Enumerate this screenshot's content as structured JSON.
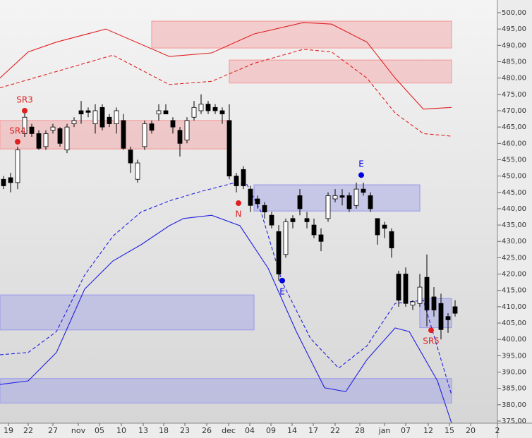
{
  "chart_data": {
    "type": "candlestick",
    "xlim": [
      0,
      70.5
    ],
    "ylim": [
      374.35,
      503.89
    ],
    "xticks": [
      {
        "value": 1.2,
        "label": "19"
      },
      {
        "value": 4.0,
        "label": "22"
      },
      {
        "value": 7.5,
        "label": "27"
      },
      {
        "value": 11.1,
        "label": "nov"
      },
      {
        "value": 14.1,
        "label": "05"
      },
      {
        "value": 17.2,
        "label": "10"
      },
      {
        "value": 20.3,
        "label": "13"
      },
      {
        "value": 23.2,
        "label": "18"
      },
      {
        "value": 26.2,
        "label": "23"
      },
      {
        "value": 29.3,
        "label": "26"
      },
      {
        "value": 32.4,
        "label": "dec"
      },
      {
        "value": 35.4,
        "label": "04"
      },
      {
        "value": 38.4,
        "label": "09"
      },
      {
        "value": 41.4,
        "label": "14"
      },
      {
        "value": 44.4,
        "label": "17"
      },
      {
        "value": 47.5,
        "label": "22"
      },
      {
        "value": 51.0,
        "label": "28"
      },
      {
        "value": 54.5,
        "label": "jan"
      },
      {
        "value": 57.5,
        "label": "07"
      },
      {
        "value": 60.7,
        "label": "12"
      },
      {
        "value": 63.7,
        "label": "15"
      },
      {
        "value": 66.7,
        "label": "20"
      },
      {
        "value": 70.5,
        "label": "2"
      }
    ],
    "yticks": [
      {
        "value": 500,
        "label": "500,00"
      },
      {
        "value": 495,
        "label": "495,00"
      },
      {
        "value": 490,
        "label": "490,00"
      },
      {
        "value": 485,
        "label": "485,00"
      },
      {
        "value": 480,
        "label": "480,00"
      },
      {
        "value": 475,
        "label": "475,00"
      },
      {
        "value": 470,
        "label": "470,00"
      },
      {
        "value": 465,
        "label": "465,00"
      },
      {
        "value": 460,
        "label": "460,00"
      },
      {
        "value": 455,
        "label": "455,00"
      },
      {
        "value": 450,
        "label": "450,00"
      },
      {
        "value": 445,
        "label": "445,00"
      },
      {
        "value": 440,
        "label": "440,00"
      },
      {
        "value": 435,
        "label": "435,00"
      },
      {
        "value": 430,
        "label": "430,00"
      },
      {
        "value": 425,
        "label": "425,00"
      },
      {
        "value": 420,
        "label": "420,00"
      },
      {
        "value": 415,
        "label": "415,00"
      },
      {
        "value": 410,
        "label": "410,00"
      },
      {
        "value": 405,
        "label": "405,00"
      },
      {
        "value": 400,
        "label": "400,00"
      },
      {
        "value": 395,
        "label": "395,00"
      },
      {
        "value": 390,
        "label": "390,00"
      },
      {
        "value": 385,
        "label": "385,00"
      },
      {
        "value": 380,
        "label": "380,00"
      },
      {
        "value": 375,
        "label": "375,00"
      }
    ],
    "x": [
      0.5,
      1.5,
      2.5,
      3.5,
      4.5,
      5.5,
      6.5,
      7.5,
      8.5,
      9.5,
      10.5,
      11.5,
      12.5,
      13.5,
      14.5,
      15.5,
      16.5,
      17.5,
      18.5,
      19.5,
      20.5,
      21.5,
      22.5,
      23.5,
      24.5,
      25.5,
      26.5,
      27.5,
      28.5,
      29.5,
      30.5,
      31.5,
      32.5,
      33.5,
      34.5,
      35.5,
      36.5,
      37.5,
      38.5,
      39.5,
      40.5,
      41.5,
      42.5,
      43.5,
      44.5,
      45.5,
      46.5,
      47.5,
      48.5,
      49.5,
      50.5,
      51.5,
      52.5,
      53.5,
      54.5,
      55.5,
      56.5,
      57.5,
      58.5,
      59.5,
      60.5,
      61.5,
      62.5,
      63.5,
      64.5
    ],
    "open": [
      449,
      449.5,
      448,
      463,
      465,
      463,
      459,
      464,
      464.5,
      458,
      466,
      470,
      470,
      466,
      471,
      468,
      466,
      467,
      458,
      449,
      459,
      466,
      469,
      470,
      467,
      464,
      461,
      468,
      470,
      472,
      471,
      470,
      467,
      450,
      452,
      446,
      443,
      441,
      438,
      433,
      426,
      437,
      444,
      437,
      435,
      432,
      437,
      443,
      444,
      444,
      441,
      446,
      444,
      437,
      435,
      433,
      420,
      420,
      410.5,
      411,
      419,
      413,
      411,
      407,
      410
    ],
    "high": [
      450,
      451,
      459,
      470,
      466,
      464,
      464,
      466,
      465,
      466,
      468,
      473,
      471,
      472,
      472,
      469,
      471,
      469,
      459,
      455,
      467,
      467,
      472,
      472,
      468,
      465,
      468,
      473,
      475,
      473,
      472,
      471,
      472,
      451,
      453,
      447,
      444,
      442,
      439,
      435,
      437,
      438,
      446,
      439,
      437,
      434,
      445,
      446,
      446,
      445,
      448,
      448,
      445,
      437,
      436,
      434,
      421,
      422,
      412,
      420,
      426,
      416,
      414,
      408,
      412
    ],
    "low": [
      446,
      445,
      446,
      462,
      462,
      458,
      458,
      463,
      459,
      457,
      465,
      466,
      468,
      463,
      464,
      465,
      463,
      458,
      451,
      448,
      458,
      463,
      467,
      469,
      463,
      456,
      460,
      467,
      469,
      469,
      469,
      466,
      449,
      445,
      446,
      439,
      440,
      437,
      434,
      418,
      425,
      434,
      438,
      434,
      431,
      427,
      436,
      442,
      441,
      439,
      440,
      444,
      439,
      429,
      431,
      425,
      410,
      410,
      409,
      410,
      404,
      407,
      400,
      402,
      407
    ],
    "close": [
      447,
      448,
      458,
      468,
      463,
      458.5,
      463,
      465,
      460,
      465,
      467,
      469,
      469.5,
      470,
      465,
      466,
      470,
      458.5,
      454,
      454,
      466,
      464,
      470,
      469,
      465,
      460,
      467,
      471,
      472,
      470,
      470,
      469,
      450,
      447,
      447,
      441,
      441.5,
      439,
      435,
      420,
      436,
      436,
      440,
      436,
      432,
      430,
      444,
      444,
      443.5,
      440,
      446,
      445,
      440,
      432,
      434,
      428,
      412,
      411,
      411.5,
      416,
      409,
      409,
      403,
      406,
      408
    ],
    "zones": [
      {
        "x0": 21.5,
        "x1": 64,
        "low": 489.2,
        "high": 497.4,
        "color": "#f4a0a0"
      },
      {
        "x0": 32.5,
        "x1": 64,
        "low": 478.5,
        "high": 485.5,
        "color": "#f4a0a0"
      },
      {
        "x0": 0,
        "x1": 32.5,
        "low": 458.3,
        "high": 467,
        "color": "#f4a0a0"
      },
      {
        "x0": 0,
        "x1": 36,
        "low": 402.9,
        "high": 413.6,
        "color": "#a0a0e8"
      },
      {
        "x0": 36,
        "x1": 59.5,
        "low": 439.3,
        "high": 447.3,
        "color": "#a0a0e8"
      },
      {
        "x0": 59.5,
        "x1": 64,
        "low": 403.6,
        "high": 412.5,
        "color": "#a0a0e8"
      },
      {
        "x0": 0,
        "x1": 64,
        "low": 380.5,
        "high": 388,
        "color": "#a0a0e8"
      }
    ],
    "lines": [
      {
        "color": "#e02020",
        "dash": false,
        "x": [
          0,
          4,
          8,
          15,
          24,
          30,
          36,
          43,
          47,
          52,
          56,
          60,
          64
        ],
        "values": [
          480,
          488,
          491,
          495,
          486.6,
          487.7,
          493.5,
          497,
          496.5,
          491,
          480,
          470.5,
          471
        ]
      },
      {
        "color": "#e02020",
        "dash": true,
        "x": [
          0,
          12,
          16,
          24,
          30,
          36,
          43,
          47,
          52,
          56,
          60,
          64
        ],
        "values": [
          477,
          484.5,
          487,
          478,
          479,
          484.5,
          488.8,
          488,
          480,
          469.3,
          463,
          462.2
        ]
      },
      {
        "color": "#2020e0",
        "dash": true,
        "x": [
          0,
          4,
          8,
          12,
          16,
          20,
          24,
          28,
          33,
          35,
          37,
          40,
          44,
          48,
          52,
          56,
          60,
          64
        ],
        "values": [
          395.3,
          396,
          402.4,
          419.7,
          431.6,
          439,
          442.4,
          445,
          447.8,
          447.4,
          439,
          417.5,
          400.3,
          391.2,
          398,
          411,
          412,
          383
        ]
      },
      {
        "color": "#2020e0",
        "dash": false,
        "x": [
          0,
          4,
          8,
          12,
          16,
          20,
          24,
          26,
          30,
          34,
          38,
          42,
          46,
          49,
          52,
          56,
          58,
          62,
          64
        ],
        "values": [
          386.2,
          387.3,
          396,
          415.4,
          424,
          429,
          434.8,
          437,
          438,
          434.8,
          421.8,
          402.4,
          385.2,
          384,
          393.8,
          403.5,
          402.4,
          387.3,
          374.4
        ]
      }
    ],
    "markers": [
      {
        "label": "SR3",
        "x": 3.5,
        "value": 470,
        "color": "#e02020",
        "pos": "above"
      },
      {
        "label": "SR4",
        "x": 2.5,
        "value": 460.5,
        "color": "#e02020",
        "pos": "above"
      },
      {
        "label": "N",
        "x": 33.8,
        "value": 441.7,
        "color": "#e02020",
        "pos": "below"
      },
      {
        "label": "E",
        "x": 40,
        "value": 418,
        "color": "#0000e0",
        "pos": "below"
      },
      {
        "label": "E",
        "x": 51.2,
        "value": 450.3,
        "color": "#0000e0",
        "pos": "above"
      },
      {
        "label": "SR5",
        "x": 61.1,
        "value": 402.8,
        "color": "#e02020",
        "pos": "below"
      }
    ]
  }
}
